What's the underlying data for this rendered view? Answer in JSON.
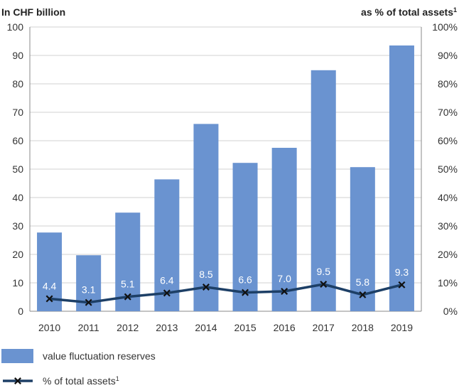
{
  "chart_data": {
    "type": "bar",
    "left_axis_title": "In CHF billion",
    "right_axis_title": "as % of total assets",
    "right_axis_title_sup": "1",
    "categories": [
      "2010",
      "2011",
      "2012",
      "2013",
      "2014",
      "2015",
      "2016",
      "2017",
      "2018",
      "2019"
    ],
    "series": [
      {
        "name": "value fluctuation reserves",
        "type": "bar",
        "axis": "left",
        "values": [
          27.7,
          19.7,
          34.7,
          46.4,
          65.9,
          52.2,
          57.5,
          84.8,
          50.7,
          93.5
        ],
        "color": "#6a93d0"
      },
      {
        "name": "% of total assets",
        "name_sup": "1",
        "type": "line",
        "axis": "right",
        "values": [
          4.4,
          3.1,
          5.1,
          6.4,
          8.5,
          6.6,
          7.0,
          9.5,
          5.8,
          9.3
        ],
        "labels": [
          "4.4",
          "3.1",
          "5.1",
          "6.4",
          "8.5",
          "6.6",
          "7.0",
          "9.5",
          "5.8",
          "9.3"
        ],
        "color": "#1d3f66",
        "marker": "x"
      }
    ],
    "left_ylim": [
      0,
      100
    ],
    "left_yticks": [
      "0",
      "10",
      "20",
      "30",
      "40",
      "50",
      "60",
      "70",
      "80",
      "90",
      "100"
    ],
    "right_ylim": [
      0,
      100
    ],
    "right_yticks": [
      "0%",
      "10%",
      "20%",
      "30%",
      "40%",
      "50%",
      "60%",
      "70%",
      "80%",
      "90%",
      "100%"
    ],
    "grid": true,
    "legend_position": "bottom-left"
  }
}
